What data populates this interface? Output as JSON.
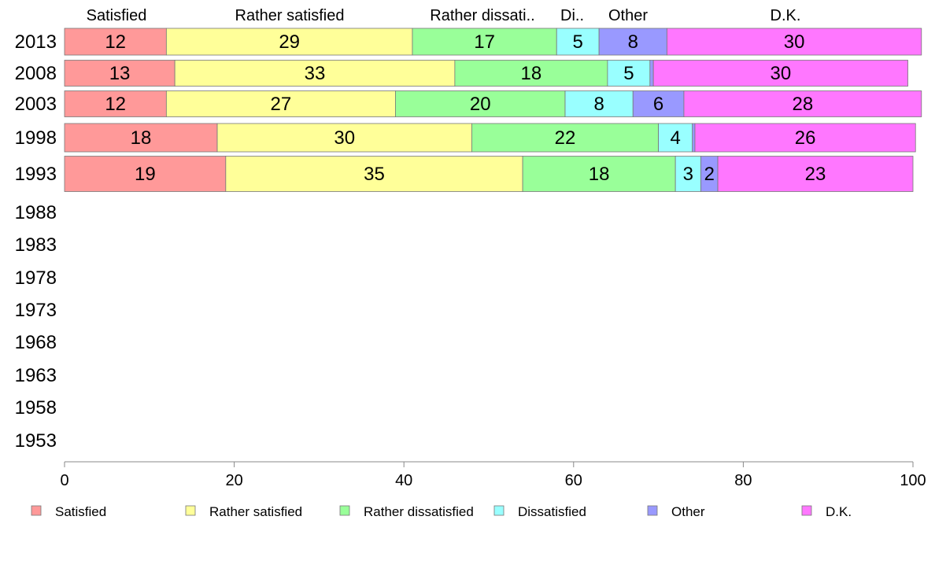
{
  "chart_data": {
    "type": "bar",
    "orientation": "horizontal",
    "stacked": true,
    "categories": [
      "2013",
      "2008",
      "2003",
      "1998",
      "1993",
      "1988",
      "1983",
      "1978",
      "1973",
      "1968",
      "1963",
      "1958",
      "1953"
    ],
    "series": [
      {
        "name": "Satisfied",
        "color": "#ff9999",
        "values": [
          12,
          13,
          12,
          18,
          19,
          null,
          null,
          null,
          null,
          null,
          null,
          null,
          null
        ]
      },
      {
        "name": "Rather satisfied",
        "color": "#ffff99",
        "values": [
          29,
          33,
          27,
          30,
          35,
          null,
          null,
          null,
          null,
          null,
          null,
          null,
          null
        ]
      },
      {
        "name": "Rather dissatisfied",
        "color": "#99ff99",
        "values": [
          17,
          18,
          20,
          22,
          18,
          null,
          null,
          null,
          null,
          null,
          null,
          null,
          null
        ]
      },
      {
        "name": "Dissatisfied",
        "color": "#99ffff",
        "values": [
          5,
          5,
          8,
          4,
          3,
          null,
          null,
          null,
          null,
          null,
          null,
          null,
          null
        ]
      },
      {
        "name": "Other",
        "color": "#9999ff",
        "values": [
          8,
          0.4,
          6,
          0.3,
          2,
          null,
          null,
          null,
          null,
          null,
          null,
          null,
          null
        ]
      },
      {
        "name": "D.K.",
        "color": "#ff77ff",
        "values": [
          30,
          30,
          28,
          26,
          23,
          null,
          null,
          null,
          null,
          null,
          null,
          null,
          null
        ]
      }
    ],
    "data_labels": [
      [
        "12",
        "29",
        "17",
        "5",
        "8",
        "30"
      ],
      [
        "13",
        "33",
        "18",
        "5",
        "",
        "30"
      ],
      [
        "12",
        "27",
        "20",
        "8",
        "6",
        "28"
      ],
      [
        "18",
        "30",
        "22",
        "4",
        "",
        "26"
      ],
      [
        "19",
        "35",
        "18",
        "3",
        "2",
        "23"
      ]
    ],
    "column_headers": [
      "Satisfied",
      "Rather satisfied",
      "Rather dissati..",
      "Di..",
      "Other",
      "D.K."
    ],
    "xlim": [
      0,
      100
    ],
    "xticks": [
      0,
      20,
      40,
      60,
      80,
      100
    ],
    "grid": false,
    "legend_position": "bottom",
    "legend": [
      "Satisfied",
      "Rather satisfied",
      "Rather dissatisfied",
      "Dissatisfied",
      "Other",
      "D.K."
    ]
  }
}
